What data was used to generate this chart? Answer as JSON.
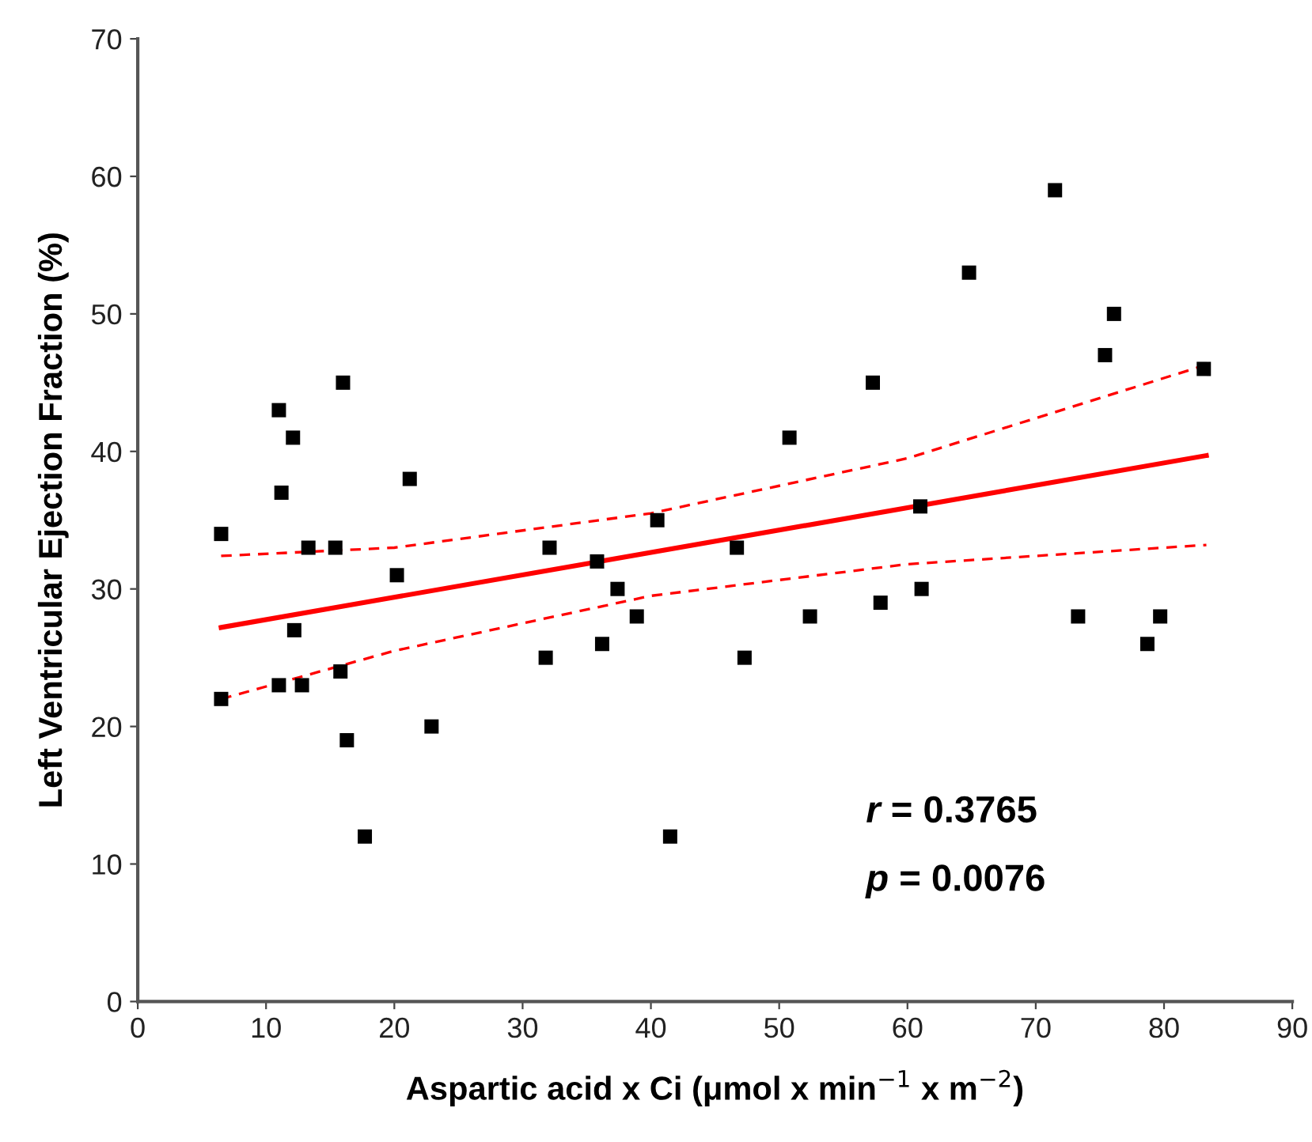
{
  "chart_data": {
    "type": "scatter",
    "xlabel": "Aspartic acid x Ci (μmol x min$^{−1}$ x m$^{−2}$)",
    "ylabel": "Left Ventricular Ejection Fraction (%)",
    "xlim": [
      0,
      90
    ],
    "ylim": [
      0,
      70
    ],
    "xticks": [
      0,
      10,
      20,
      30,
      40,
      50,
      60,
      70,
      80,
      90
    ],
    "yticks": [
      0,
      10,
      20,
      30,
      40,
      50,
      60,
      70
    ],
    "grid": false,
    "legend": false,
    "annotations": [
      "r = 0.3765",
      "p = 0.0076"
    ],
    "series": [
      {
        "color": "#000000",
        "marker": "square",
        "x": [
          6.5,
          6.5,
          11,
          11.2,
          11,
          12.1,
          12.2,
          12.8,
          13.3,
          15.4,
          16,
          15.8,
          16.3,
          17.7,
          20.2,
          21.2,
          22.9,
          31.8,
          32.1,
          35.8,
          36.2,
          37.4,
          38.9,
          40.5,
          41.5,
          46.7,
          47.3,
          50.8,
          52.4,
          57.3,
          57.9,
          61,
          61.1,
          64.8,
          71.5,
          73.3,
          75.4,
          76.1,
          78.7,
          79.7,
          83.1
        ],
        "values": [
          34,
          22,
          43,
          37,
          23,
          41,
          27,
          23,
          33,
          33,
          45,
          24,
          19,
          12,
          31,
          38,
          20,
          25,
          33,
          32,
          26,
          30,
          28,
          35,
          12,
          33,
          25,
          41,
          28,
          45,
          29,
          36,
          30,
          53,
          59,
          28,
          47,
          50,
          26,
          28,
          46
        ]
      },
      {
        "type": "line",
        "color": "#ff0000",
        "line_style": "solid",
        "x": [
          6.5,
          83.3
        ],
        "values": [
          27.2,
          39.7
        ]
      },
      {
        "type": "line",
        "color": "#ff0000",
        "line_style": "dashed",
        "x": [
          6.5,
          20,
          40,
          60,
          83.3
        ],
        "values": [
          32.4,
          33,
          35.5,
          39.5,
          46.3
        ]
      },
      {
        "type": "line",
        "color": "#ff0000",
        "line_style": "dashed",
        "x": [
          6.5,
          20,
          40,
          60,
          83.3
        ],
        "values": [
          22,
          25.5,
          29.5,
          31.8,
          33.2
        ]
      }
    ]
  }
}
